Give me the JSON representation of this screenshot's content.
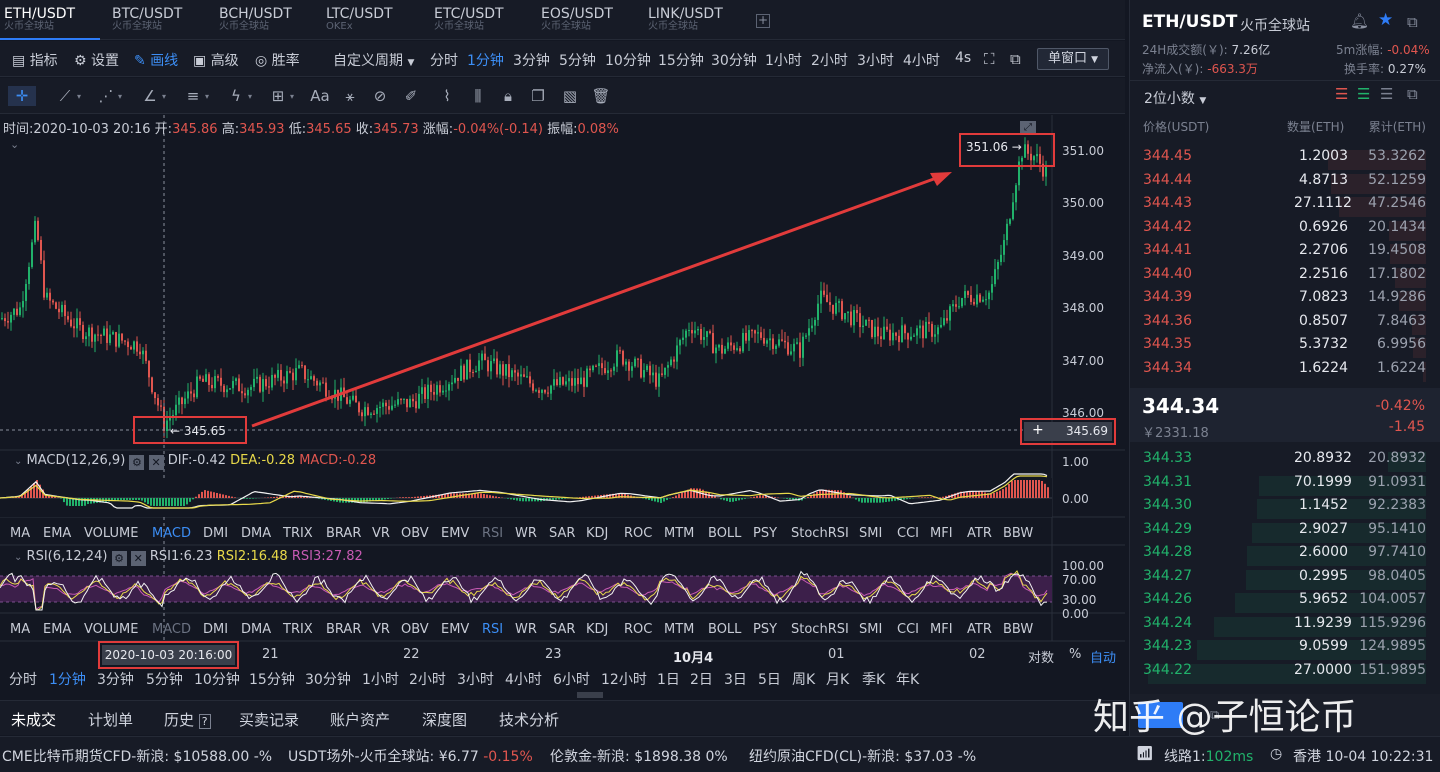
{
  "tabs": [
    {
      "title": "ETH/USDT",
      "sub": "火币全球站"
    },
    {
      "title": "BTC/USDT",
      "sub": "火币全球站"
    },
    {
      "title": "BCH/USDT",
      "sub": "火币全球站"
    },
    {
      "title": "LTC/USDT",
      "sub": "OKEx"
    },
    {
      "title": "ETC/USDT",
      "sub": "火币全球站"
    },
    {
      "title": "EOS/USDT",
      "sub": "火币全球站"
    },
    {
      "title": "LINK/USDT",
      "sub": "火币全球站"
    }
  ],
  "toolbar": {
    "indicator": "指标",
    "settings": "设置",
    "draw": "画线",
    "advanced": "高级",
    "winrate": "胜率",
    "custom_period": "自定义周期",
    "periods": [
      "分时",
      "1分钟",
      "3分钟",
      "5分钟",
      "10分钟",
      "15分钟",
      "30分钟",
      "1小时",
      "2小时",
      "3小时",
      "4小时",
      "4s"
    ],
    "window": "单窗口"
  },
  "chart": {
    "info": {
      "time": "时间:2020-10-03 20:16",
      "open_l": "开:",
      "open": "345.86",
      "high_l": "高:",
      "high": "345.93",
      "low_l": "低:",
      "low": "345.65",
      "close_l": "收:",
      "close": "345.73",
      "chg_l": "涨幅:",
      "chg": "-0.04%(-0.14)",
      "amp_l": "振幅:",
      "amp": "0.08%"
    },
    "price_axis": [
      "351.00",
      "350.00",
      "349.00",
      "348.00",
      "347.00",
      "346.00"
    ],
    "high_label": "351.06 →",
    "low_label": "← 345.65",
    "last_price": "345.69",
    "plus": "+",
    "macd": {
      "name": "MACD(12,26,9)",
      "dif": "DIF:-0.42",
      "dea": "DEA:-0.28",
      "macd": "MACD:-0.28",
      "axis": [
        "1.00",
        "0.00"
      ]
    },
    "rsi": {
      "name": "RSI(6,12,24)",
      "r1": "RSI1:6.23",
      "r2": "RSI2:16.48",
      "r3": "RSI3:27.82",
      "axis": [
        "100.00",
        "70.00",
        "30.00",
        "0.00"
      ]
    },
    "indicators": [
      "MA",
      "EMA",
      "VOLUME",
      "MACD",
      "DMI",
      "DMA",
      "TRIX",
      "BRAR",
      "VR",
      "OBV",
      "EMV",
      "RSI",
      "WR",
      "SAR",
      "KDJ",
      "ROC",
      "MTM",
      "BOLL",
      "PSY",
      "StochRSI",
      "SMI",
      "CCI",
      "MFI",
      "ATR",
      "BBW"
    ],
    "time_axis": {
      "cursor": "2020-10-03 20:16:00",
      "labels": [
        "21",
        "22",
        "23",
        "10月4",
        "01",
        "02"
      ],
      "log": "对数",
      "pct": "%",
      "auto": "自动"
    }
  },
  "periods_bottom": [
    "分时",
    "1分钟",
    "3分钟",
    "5分钟",
    "10分钟",
    "15分钟",
    "30分钟",
    "1小时",
    "2小时",
    "3小时",
    "4小时",
    "6小时",
    "12小时",
    "1日",
    "2日",
    "3日",
    "5日",
    "周K",
    "月K",
    "季K",
    "年K"
  ],
  "bottom_tabs": [
    "未成交",
    "计划单",
    "历史",
    "买卖记录",
    "账户资产",
    "深度图",
    "技术分析"
  ],
  "ticker": [
    {
      "name": "CME比特币期货CFD-新浪:",
      "price": "$10588.00",
      "chg": "-%"
    },
    {
      "name": "USDT场外-火币全球站:",
      "price": "¥6.77",
      "chg": "-0.15%"
    },
    {
      "name": "伦敦金-新浪:",
      "price": "$1898.38",
      "chg": "0%"
    },
    {
      "name": "纽约原油CFD(CL)-新浪:",
      "price": "$37.03",
      "chg": "-%"
    }
  ],
  "status": {
    "line": "线路1:",
    "ms": "102ms",
    "tz": "香港 10-04 10:22:31"
  },
  "right": {
    "pair": "ETH/USDT",
    "exchange": "火币全球站",
    "vol_l": "24H成交额(￥):",
    "vol": "7.26亿",
    "inflow_l": "净流入(￥):",
    "inflow": "-663.3万",
    "m5_l": "5m涨幅:",
    "m5": "-0.04%",
    "turn_l": "换手率:",
    "turn": "0.27%",
    "decimals": "2位小数",
    "headers": [
      "价格(USDT)",
      "数量(ETH)",
      "累计(ETH)"
    ],
    "asks": [
      [
        "344.45",
        "1.2003",
        "53.3262"
      ],
      [
        "344.44",
        "4.8713",
        "52.1259"
      ],
      [
        "344.43",
        "27.1112",
        "47.2546"
      ],
      [
        "344.42",
        "0.6926",
        "20.1434"
      ],
      [
        "344.41",
        "2.2706",
        "19.4508"
      ],
      [
        "344.40",
        "2.2516",
        "17.1802"
      ],
      [
        "344.39",
        "7.0823",
        "14.9286"
      ],
      [
        "344.36",
        "0.8507",
        "7.8463"
      ],
      [
        "344.35",
        "5.3732",
        "6.9956"
      ],
      [
        "344.34",
        "1.6224",
        "1.6224"
      ]
    ],
    "last": "344.34",
    "last_pct": "-0.42%",
    "last_cny": "￥2331.18",
    "last_chg": "-1.45",
    "bids": [
      [
        "344.33",
        "20.8932",
        "20.8932"
      ],
      [
        "344.31",
        "70.1999",
        "91.0931"
      ],
      [
        "344.30",
        "1.1452",
        "92.2383"
      ],
      [
        "344.29",
        "2.9027",
        "95.1410"
      ],
      [
        "344.28",
        "2.6000",
        "97.7410"
      ],
      [
        "344.27",
        "0.2995",
        "98.0405"
      ],
      [
        "344.26",
        "5.9652",
        "104.0057"
      ],
      [
        "344.24",
        "11.9239",
        "115.9296"
      ],
      [
        "344.23",
        "9.0599",
        "124.9895"
      ],
      [
        "344.22",
        "27.0000",
        "151.9895"
      ]
    ]
  },
  "watermark": "知乎 @子恒论币",
  "colors": {
    "up": "#21b26b",
    "down": "#e0564f",
    "accent": "#3c8ef5",
    "annotation": "#e13b3b"
  }
}
